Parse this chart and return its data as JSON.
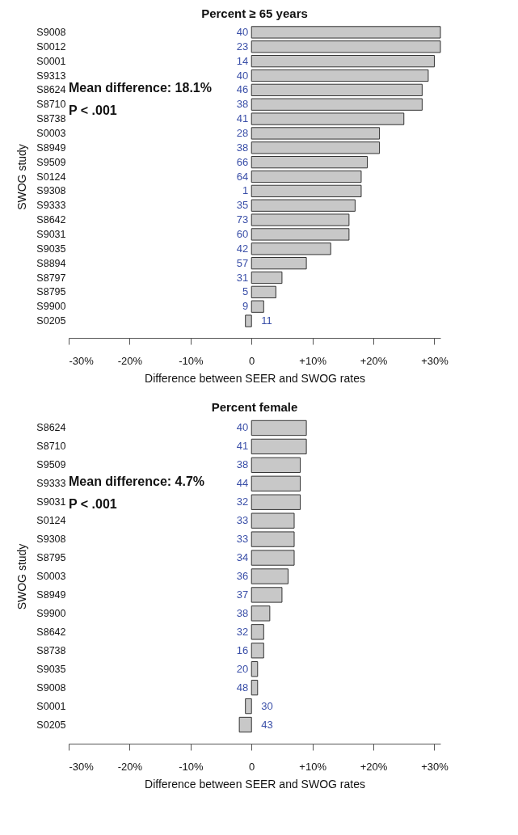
{
  "chart_data": [
    {
      "type": "bar",
      "orientation": "horizontal",
      "title": "Percent ≥ 65 years",
      "xlabel": "Difference between SEER and SWOG rates",
      "ylabel": "SWOG study",
      "color": "#c8c8c8",
      "categories": [
        "S9008",
        "S0012",
        "S0001",
        "S9313",
        "S8624",
        "S8710",
        "S8738",
        "S0003",
        "S8949",
        "S9509",
        "S0124",
        "S9308",
        "S9333",
        "S8642",
        "S9031",
        "S9035",
        "S8894",
        "S8797",
        "S8795",
        "S9900",
        "S0205"
      ],
      "values": [
        31,
        31,
        30,
        29,
        28,
        28,
        25,
        21,
        21,
        19,
        18,
        18,
        17,
        16,
        16,
        13,
        9,
        5,
        4,
        2,
        -1
      ],
      "xlim": [
        -30,
        31
      ],
      "xticks": [
        {
          "value": -30,
          "label": "-30%"
        },
        {
          "value": -20,
          "label": "-20%"
        },
        {
          "value": -10,
          "label": "-10%"
        },
        0,
        {
          "value": 10,
          "label": "+10%"
        },
        {
          "value": 20,
          "label": "+20%"
        },
        {
          "value": 30,
          "label": "+30%"
        }
      ],
      "annotations": [
        "Mean difference: 18.1%",
        "P < .001",
        "40",
        "23",
        "14",
        "40",
        "46",
        "38",
        "41",
        "28",
        "38",
        "66",
        "64",
        "1",
        "35",
        "73",
        "60",
        "42",
        "57",
        "31",
        "5",
        "9",
        "11"
      ]
    },
    {
      "type": "bar",
      "orientation": "horizontal",
      "title": "Percent female",
      "xlabel": "Difference between SEER and SWOG rates",
      "ylabel": "SWOG study",
      "color": "#c8c8c8",
      "categories": [
        "S8624",
        "S8710",
        "S9509",
        "S9333",
        "S9031",
        "S0124",
        "S9308",
        "S8795",
        "S0003",
        "S8949",
        "S9900",
        "S8642",
        "S8738",
        "S9035",
        "S9008",
        "S0001",
        "S0205"
      ],
      "values": [
        9,
        9,
        8,
        8,
        8,
        7,
        7,
        7,
        6,
        5,
        3,
        2,
        2,
        1,
        1,
        -1,
        -2
      ],
      "xlim": [
        -30,
        31
      ],
      "xticks": [
        {
          "value": -30,
          "label": "-30%"
        },
        {
          "value": -20,
          "label": "-20%"
        },
        {
          "value": -10,
          "label": "-10%"
        },
        0,
        {
          "value": 10,
          "label": "+10%"
        },
        {
          "value": 20,
          "label": "+20%"
        },
        {
          "value": 30,
          "label": "+30%"
        }
      ],
      "annotations": [
        "Mean difference: 4.7%",
        "P < .001",
        "40",
        "41",
        "38",
        "44",
        "32",
        "33",
        "33",
        "34",
        "36",
        "37",
        "38",
        "32",
        "16",
        "20",
        "48",
        "30",
        "43"
      ]
    }
  ]
}
